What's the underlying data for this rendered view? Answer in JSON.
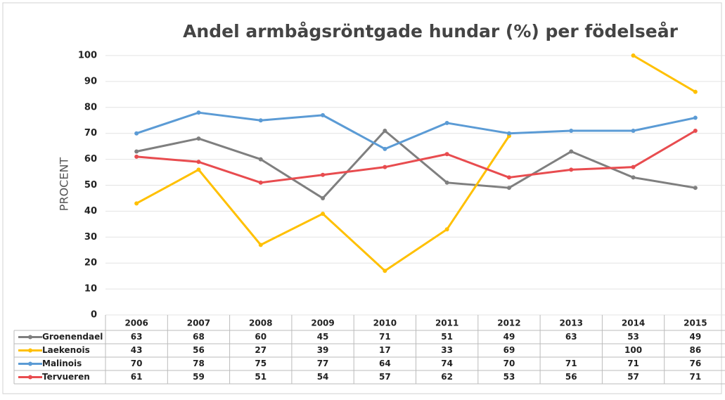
{
  "chart_data": {
    "type": "line",
    "title": "Andel armbågsröntgade hundar (%) per födelseår",
    "y_label": "PROCENT",
    "categories": [
      "2006",
      "2007",
      "2008",
      "2009",
      "2010",
      "2011",
      "2012",
      "2013",
      "2014",
      "2015"
    ],
    "series": [
      {
        "name": "Groenendael",
        "color": "#7f7f7f",
        "values": [
          63,
          68,
          60,
          45,
          71,
          51,
          49,
          63,
          53,
          49
        ]
      },
      {
        "name": "Laekenois",
        "color": "#ffc000",
        "values": [
          43,
          56,
          27,
          39,
          17,
          33,
          69,
          null,
          100,
          86
        ]
      },
      {
        "name": "Malinois",
        "color": "#5b9bd5",
        "values": [
          70,
          78,
          75,
          77,
          64,
          74,
          70,
          71,
          71,
          76
        ]
      },
      {
        "name": "Tervueren",
        "color": "#e84c4f",
        "values": [
          61,
          59,
          51,
          54,
          57,
          62,
          53,
          56,
          57,
          71
        ]
      }
    ],
    "ylim": [
      0,
      100
    ],
    "yticks": [
      0,
      10,
      20,
      30,
      40,
      50,
      60,
      70,
      80,
      90,
      100
    ],
    "grid": true
  }
}
